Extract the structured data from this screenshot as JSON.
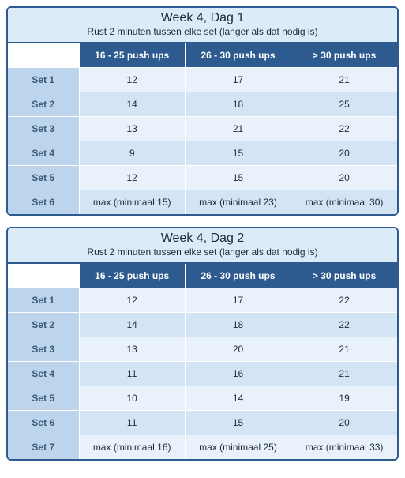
{
  "colors": {
    "border": "#2e5b8f",
    "header_bg": "#dcebf8",
    "thead_bg": "#2e5b8f",
    "thead_fg": "#ffffff",
    "rowlabel_bg": "#bcd5ec",
    "rowlabel_fg": "#3a5a7a",
    "row_odd_bg": "#e9f2fa",
    "row_even_bg": "#d3e5f5",
    "text": "#1b2a3a"
  },
  "tables": [
    {
      "title": "Week 4, Dag 1",
      "subtitle": "Rust 2 minuten tussen elke set (langer als dat nodig is)",
      "columns": [
        "16 - 25 push ups",
        "26 - 30 push ups",
        "> 30 push ups"
      ],
      "rows": [
        {
          "label": "Set 1",
          "cells": [
            "12",
            "17",
            "21"
          ]
        },
        {
          "label": "Set 2",
          "cells": [
            "14",
            "18",
            "25"
          ]
        },
        {
          "label": "Set 3",
          "cells": [
            "13",
            "21",
            "22"
          ]
        },
        {
          "label": "Set 4",
          "cells": [
            "9",
            "15",
            "20"
          ]
        },
        {
          "label": "Set 5",
          "cells": [
            "12",
            "15",
            "20"
          ]
        },
        {
          "label": "Set 6",
          "cells": [
            "max (minimaal 15)",
            "max (minimaal 23)",
            "max (minimaal 30)"
          ]
        }
      ]
    },
    {
      "title": "Week 4, Dag 2",
      "subtitle": "Rust 2 minuten tussen elke set (langer als dat nodig is)",
      "columns": [
        "16 - 25 push ups",
        "26 - 30 push ups",
        "> 30 push ups"
      ],
      "rows": [
        {
          "label": "Set 1",
          "cells": [
            "12",
            "17",
            "22"
          ]
        },
        {
          "label": "Set 2",
          "cells": [
            "14",
            "18",
            "22"
          ]
        },
        {
          "label": "Set 3",
          "cells": [
            "13",
            "20",
            "21"
          ]
        },
        {
          "label": "Set 4",
          "cells": [
            "11",
            "16",
            "21"
          ]
        },
        {
          "label": "Set 5",
          "cells": [
            "10",
            "14",
            "19"
          ]
        },
        {
          "label": "Set 6",
          "cells": [
            "11",
            "15",
            "20"
          ]
        },
        {
          "label": "Set 7",
          "cells": [
            "max (minimaal 16)",
            "max (minimaal 25)",
            "max (minimaal 33)"
          ]
        }
      ]
    }
  ]
}
